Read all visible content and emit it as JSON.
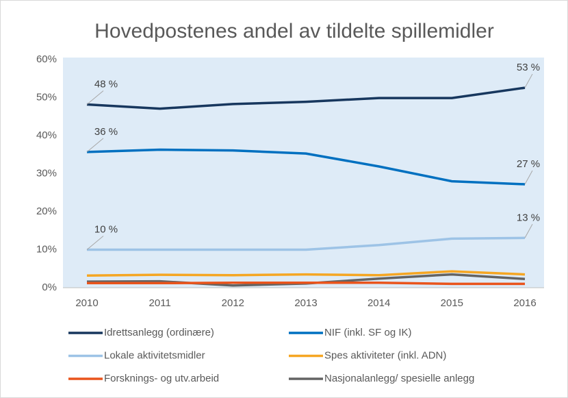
{
  "chart_data": {
    "type": "line",
    "title": "Hovedpostenes andel av tildelte spillemidler",
    "categories": [
      "2010",
      "2011",
      "2012",
      "2013",
      "2014",
      "2015",
      "2016"
    ],
    "series": [
      {
        "name": "Idrettsanlegg (ordinære)",
        "color": "#17375e",
        "values": [
          48.2,
          47.1,
          48.3,
          48.9,
          49.9,
          49.9,
          52.6
        ],
        "value_labels": [
          "48 %",
          null,
          null,
          null,
          null,
          null,
          "53 %"
        ]
      },
      {
        "name": "NIF (inkl. SF og IK)",
        "color": "#0070c0",
        "values": [
          35.7,
          36.3,
          36.1,
          35.3,
          31.9,
          28.0,
          27.2
        ],
        "value_labels": [
          "36 %",
          null,
          null,
          null,
          null,
          null,
          "27 %"
        ]
      },
      {
        "name": "Lokale aktivitetsmidler",
        "color": "#9dc3e6",
        "values": [
          10.0,
          10.0,
          10.0,
          10.0,
          11.2,
          12.9,
          13.1
        ],
        "value_labels": [
          "10 %",
          null,
          null,
          null,
          null,
          null,
          "13 %"
        ]
      },
      {
        "name": "Spes aktiviteter (inkl. ADN)",
        "color": "#f5a623",
        "values": [
          3.2,
          3.4,
          3.3,
          3.5,
          3.3,
          4.3,
          3.5
        ]
      },
      {
        "name": "Forsknings- og utv.arbeid",
        "color": "#e9541c",
        "values": [
          1.2,
          1.2,
          1.3,
          1.3,
          1.3,
          1.0,
          1.0
        ]
      },
      {
        "name": "Nasjonalanlegg/ spesielle anlegg",
        "color": "#636363",
        "values": [
          1.6,
          1.7,
          0.6,
          1.1,
          2.4,
          3.5,
          2.3
        ]
      }
    ],
    "ylim": [
      0,
      60
    ],
    "yticks": [
      {
        "value": 0,
        "label": "0%"
      },
      {
        "value": 10,
        "label": "10%"
      },
      {
        "value": 20,
        "label": "20%"
      },
      {
        "value": 30,
        "label": "30%"
      },
      {
        "value": 40,
        "label": "40%"
      },
      {
        "value": 50,
        "label": "50%"
      },
      {
        "value": 60,
        "label": "60%"
      }
    ],
    "grid": false,
    "plot_background": "#deebf7"
  }
}
